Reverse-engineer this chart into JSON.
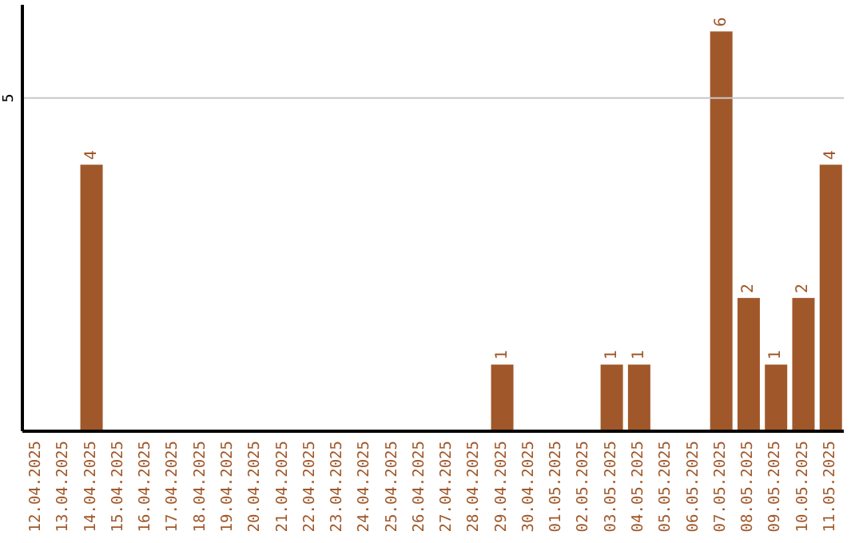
{
  "chart_data": {
    "type": "bar",
    "categories": [
      "12.04.2025",
      "13.04.2025",
      "14.04.2025",
      "15.04.2025",
      "16.04.2025",
      "17.04.2025",
      "18.04.2025",
      "19.04.2025",
      "20.04.2025",
      "21.04.2025",
      "22.04.2025",
      "23.04.2025",
      "24.04.2025",
      "25.04.2025",
      "26.04.2025",
      "27.04.2025",
      "28.04.2025",
      "29.04.2025",
      "30.04.2025",
      "01.05.2025",
      "02.05.2025",
      "03.05.2025",
      "04.05.2025",
      "05.05.2025",
      "06.05.2025",
      "07.05.2025",
      "08.05.2025",
      "09.05.2025",
      "10.05.2025",
      "11.05.2025"
    ],
    "values": [
      0,
      0,
      4,
      0,
      0,
      0,
      0,
      0,
      0,
      0,
      0,
      0,
      0,
      0,
      0,
      0,
      0,
      1,
      0,
      0,
      0,
      1,
      1,
      0,
      0,
      6,
      2,
      1,
      2,
      4
    ],
    "value_labels": [
      null,
      null,
      "4",
      null,
      null,
      null,
      null,
      null,
      null,
      null,
      null,
      null,
      null,
      null,
      null,
      null,
      null,
      "1",
      null,
      null,
      null,
      "1",
      "1",
      null,
      null,
      "6",
      "2",
      "1",
      "2",
      "4"
    ],
    "color": "#a0582a",
    "ylim": [
      0,
      6.4
    ],
    "yticks": [
      5
    ],
    "grid": "y",
    "legend": false
  }
}
